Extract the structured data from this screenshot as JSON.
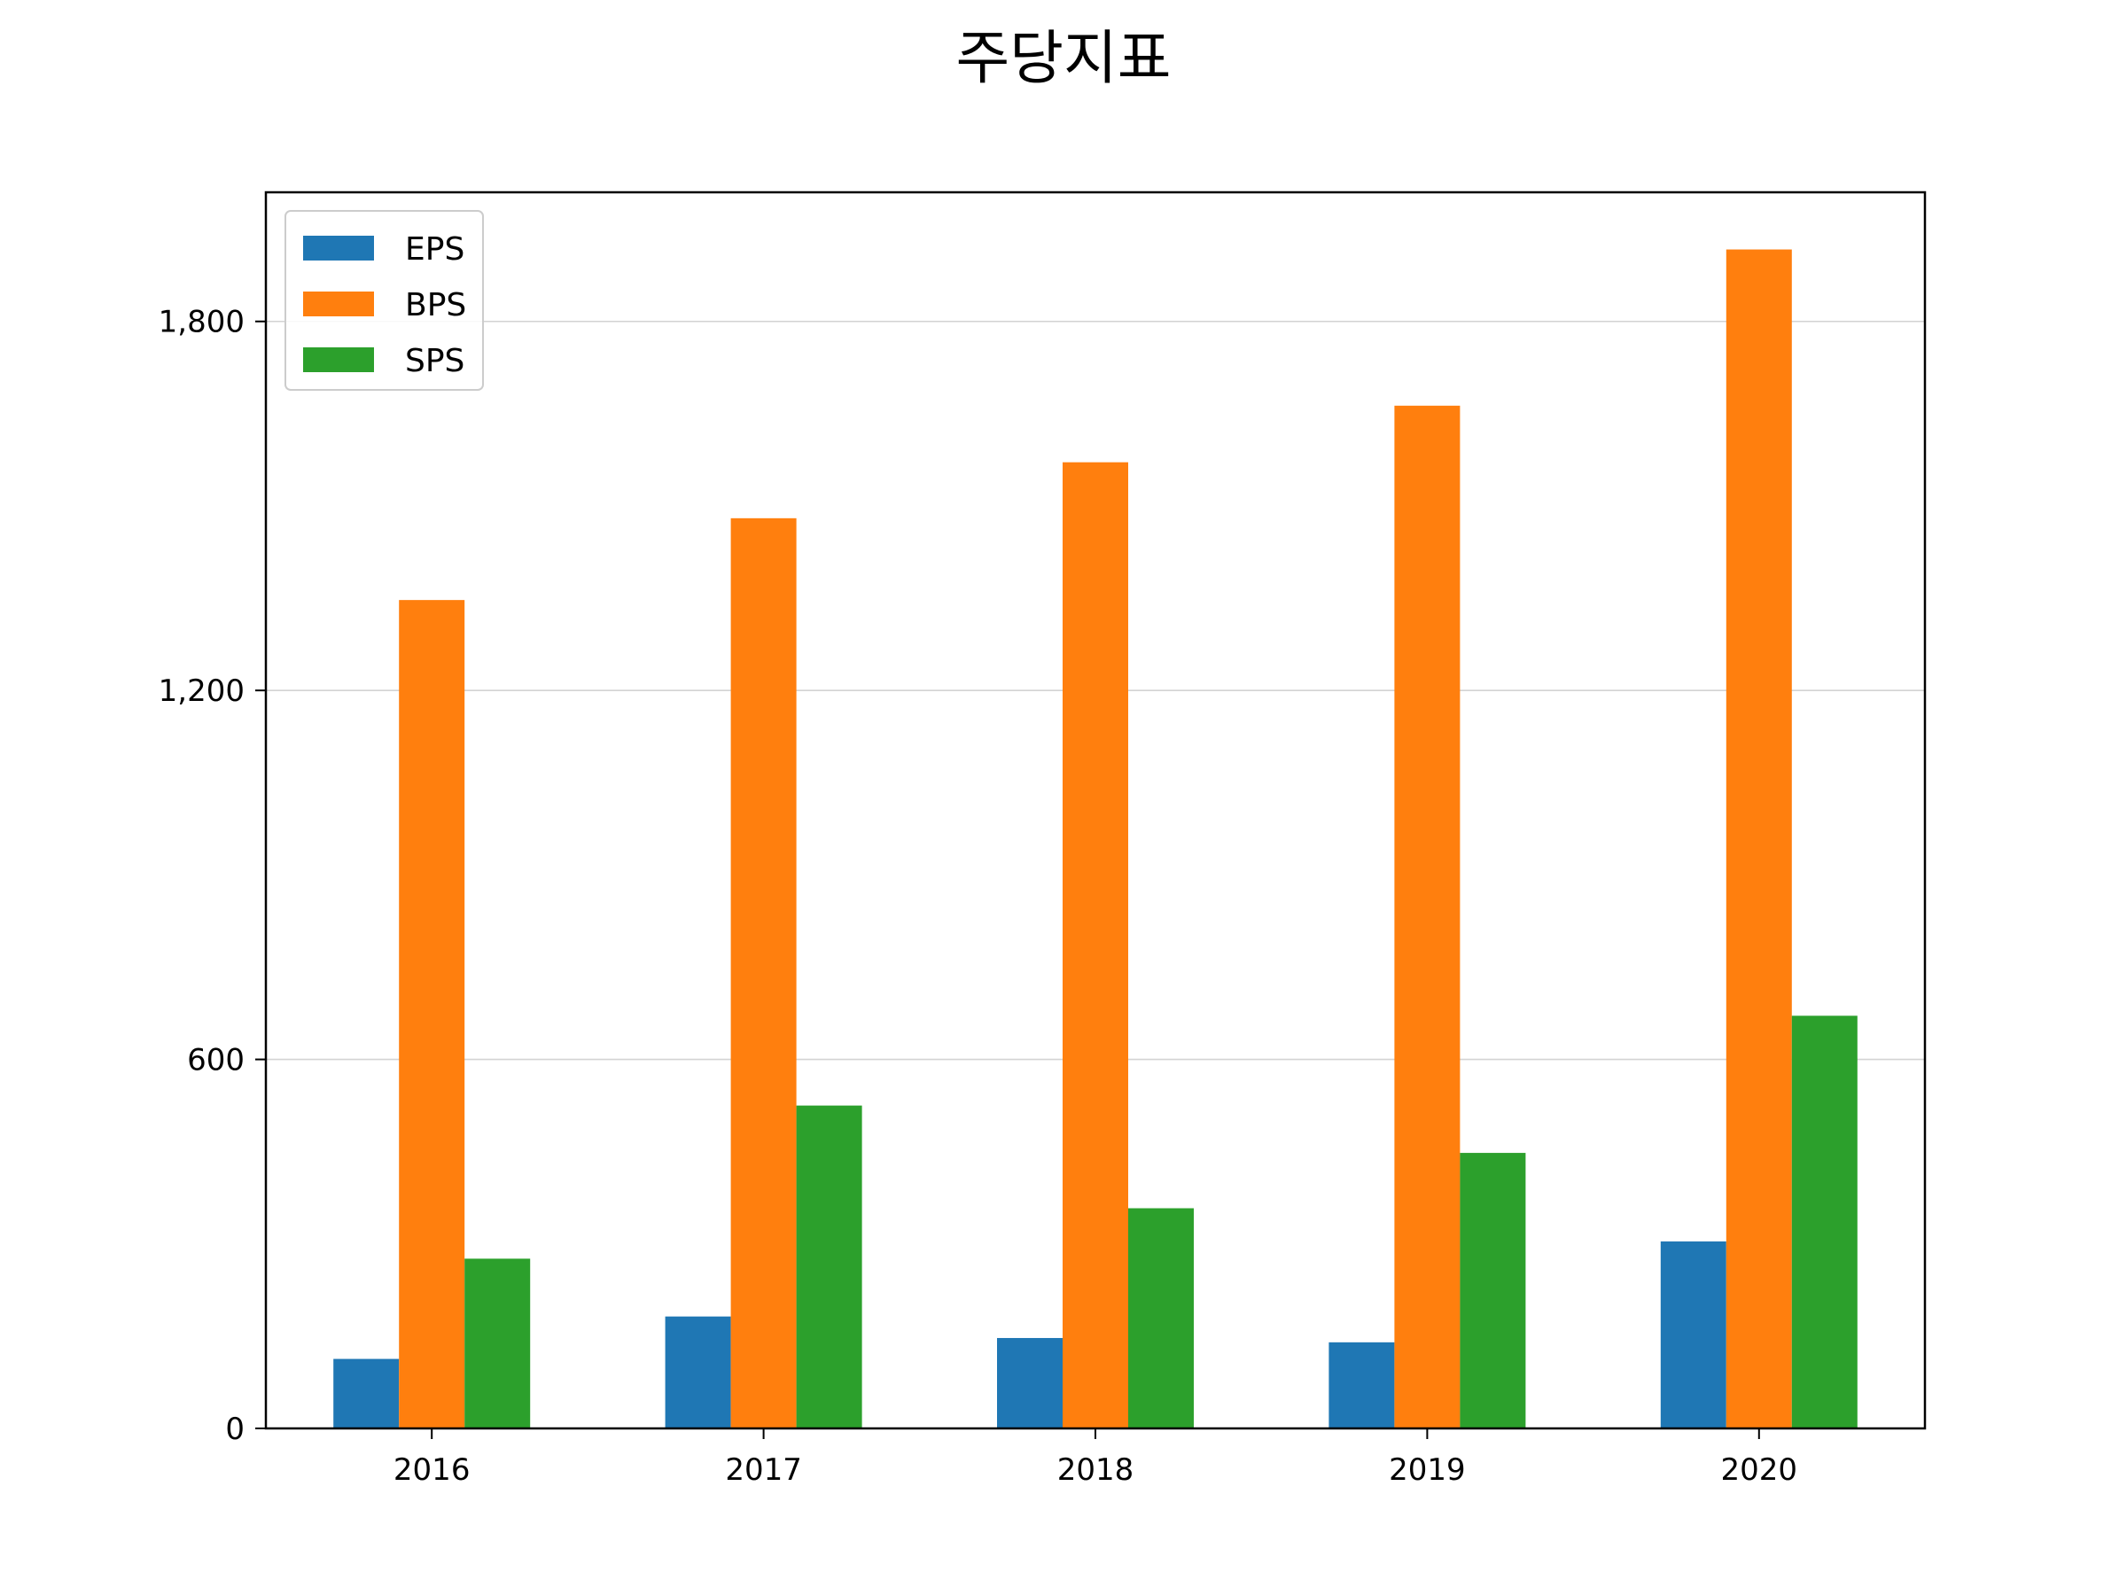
{
  "chart_data": {
    "type": "bar",
    "title": "주당지표",
    "xlabel": "",
    "ylabel": "",
    "categories": [
      "2016",
      "2017",
      "2018",
      "2019",
      "2020"
    ],
    "series": [
      {
        "name": "EPS",
        "color": "#1f77b4",
        "values": [
          113,
          182,
          147,
          140,
          304
        ]
      },
      {
        "name": "BPS",
        "color": "#ff7f0e",
        "values": [
          1347,
          1480,
          1571,
          1663,
          1917
        ]
      },
      {
        "name": "SPS",
        "color": "#2ca02c",
        "values": [
          276,
          525,
          358,
          448,
          671
        ]
      }
    ],
    "ylim": [
      0,
      2010
    ],
    "yticks": [
      0,
      600,
      1200,
      1800
    ],
    "ytick_labels": [
      "0",
      "600",
      "1,200",
      "1,800"
    ],
    "grid": "horizontal",
    "legend": "upper-left"
  }
}
